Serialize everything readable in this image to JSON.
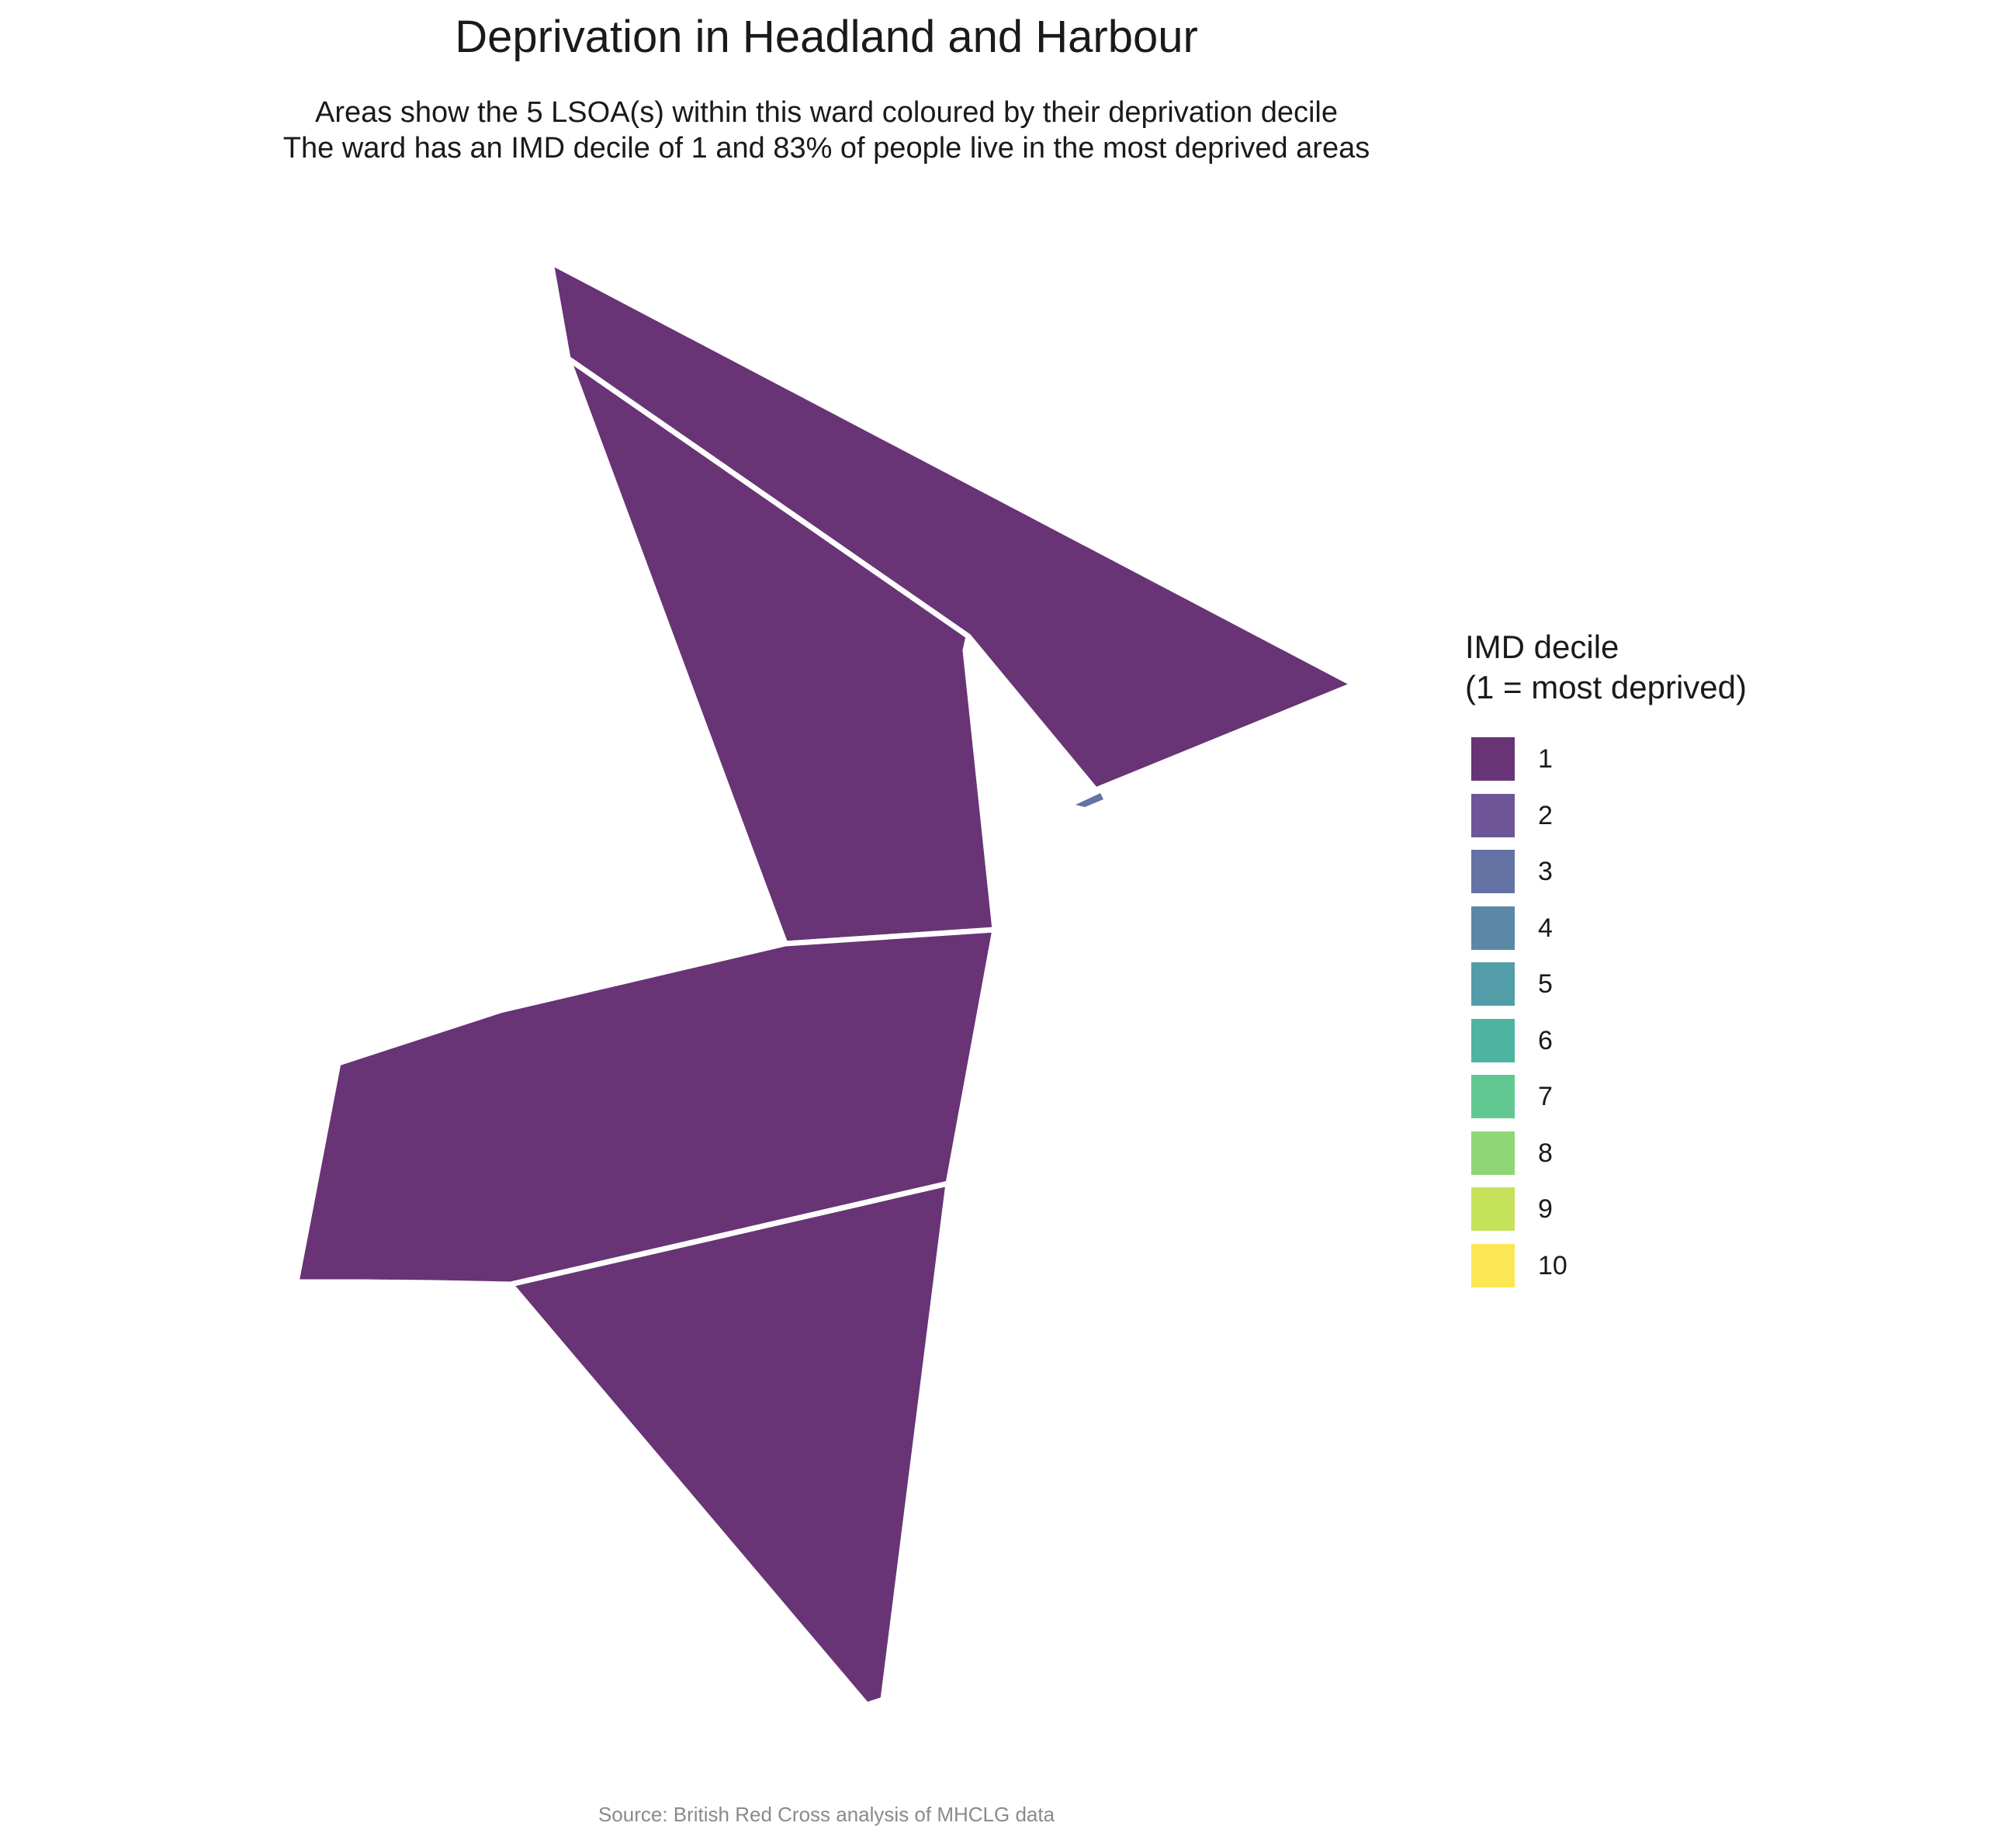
{
  "title": "Deprivation in Headland and Harbour",
  "subtitle_line1": "Areas show the 5 LSOA(s) within this ward coloured by their deprivation decile",
  "subtitle_line2": "The ward has an IMD decile of 1 and 83% of people live in the most deprived areas",
  "legend": {
    "title_line1": "IMD decile",
    "title_line2": "(1 = most deprived)",
    "items": [
      {
        "label": "1",
        "color": "#683475"
      },
      {
        "label": "2",
        "color": "#6e5597"
      },
      {
        "label": "3",
        "color": "#6472a4"
      },
      {
        "label": "4",
        "color": "#5a88a6"
      },
      {
        "label": "5",
        "color": "#529da8"
      },
      {
        "label": "6",
        "color": "#4fb3a1"
      },
      {
        "label": "7",
        "color": "#62c892"
      },
      {
        "label": "8",
        "color": "#8ed676"
      },
      {
        "label": "9",
        "color": "#c6e25a"
      },
      {
        "label": "10",
        "color": "#fbe653"
      }
    ]
  },
  "map": {
    "areas": [
      {
        "name": "lsoa-1",
        "decile": 1
      },
      {
        "name": "lsoa-2",
        "decile": 1
      },
      {
        "name": "lsoa-3",
        "decile": 1
      },
      {
        "name": "lsoa-4",
        "decile": 1
      },
      {
        "name": "lsoa-5",
        "decile": 3
      }
    ]
  },
  "caption": "Source: British Red Cross analysis of MHCLG data"
}
